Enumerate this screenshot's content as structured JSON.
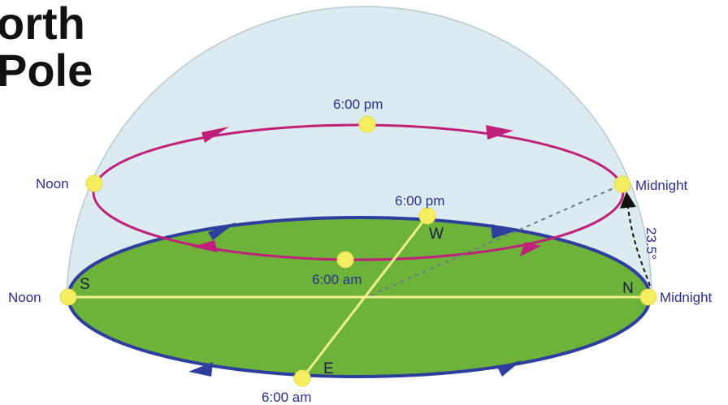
{
  "title": {
    "line1": "orth",
    "line2": "Pole"
  },
  "labels": {
    "noon_upper": "Noon",
    "midnight_upper": "Midnight",
    "pm_upper": "6:00 pm",
    "am_upper": "6:00 am",
    "pm_horizon": "6:00 pm",
    "am_horizon": "6:00 am",
    "noon_horizon": "Noon",
    "midnight_horizon": "Midnight",
    "angle": "23.5°"
  },
  "directions": {
    "south": "S",
    "north": "N",
    "west": "W",
    "east": "E"
  },
  "colors": {
    "dome": "#dcebef",
    "ground": "#6db33a",
    "horizon_ring": "#2e3e9e",
    "sun_path": "#c0207a",
    "axis_line": "#f2f08a",
    "sun_marker": "#f5ee60",
    "text": "#2b2f8f"
  }
}
